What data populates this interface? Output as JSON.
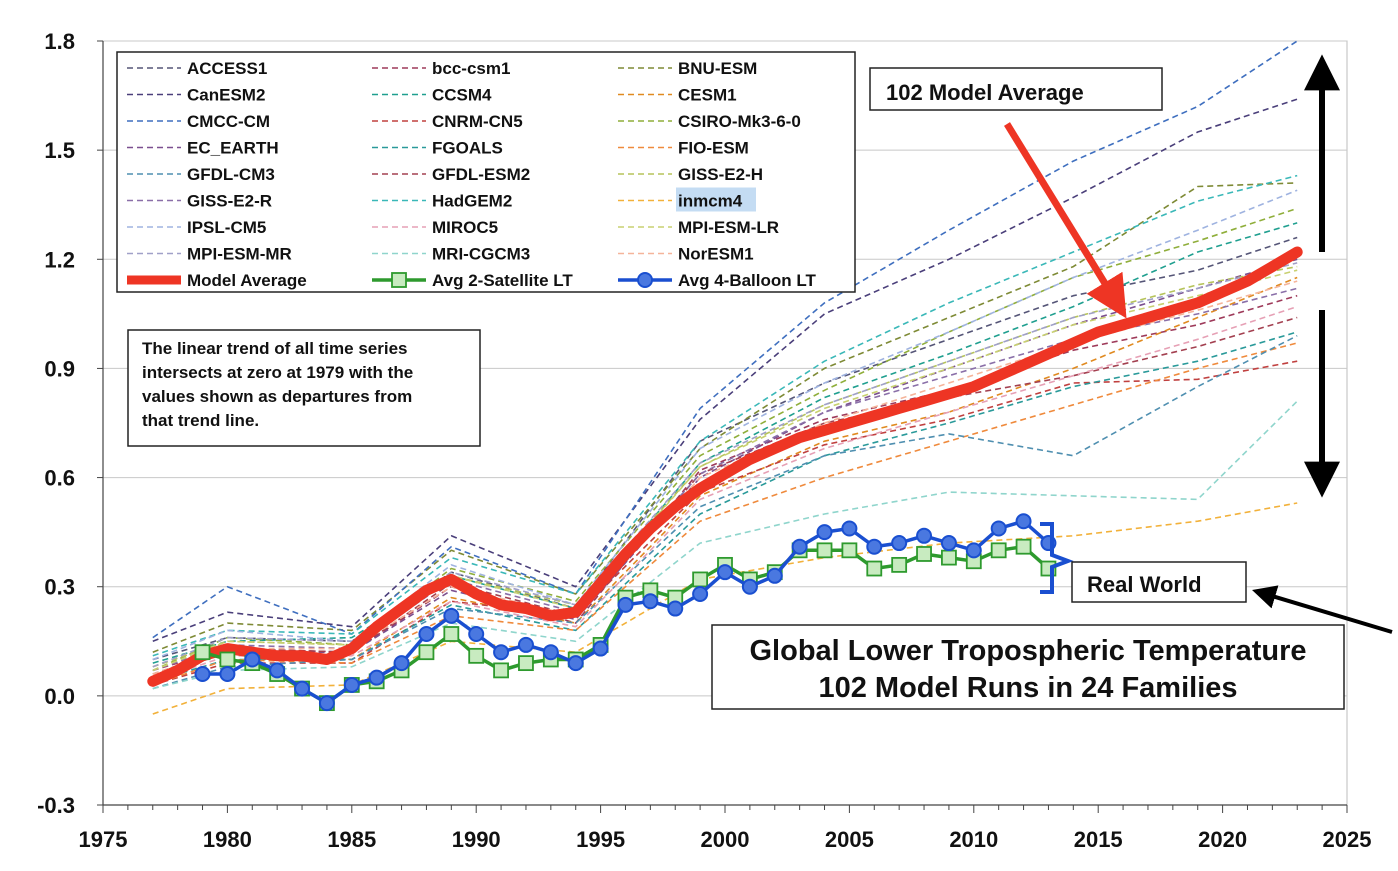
{
  "chart_data": {
    "type": "line",
    "title_lines": [
      "Global Lower Tropospheric Temperature",
      "102 Model Runs in 24 Families"
    ],
    "xlim": [
      1975,
      2025
    ],
    "ylim": [
      -0.3,
      1.8
    ],
    "x_ticks": [
      {
        "value": 1975,
        "label": "1975"
      },
      {
        "value": 1980,
        "label": "1980"
      },
      {
        "value": 1985,
        "label": "1985"
      },
      {
        "value": 1990,
        "label": "1990"
      },
      {
        "value": 1995,
        "label": "1995"
      },
      {
        "value": 2000,
        "label": "2000"
      },
      {
        "value": 2005,
        "label": "2005"
      },
      {
        "value": 2010,
        "label": "2010"
      },
      {
        "value": 2015,
        "label": "2015"
      },
      {
        "value": 2020,
        "label": "2020"
      },
      {
        "value": 2025,
        "label": "2025"
      }
    ],
    "y_ticks": [
      {
        "value": -0.3,
        "label": "-0.3"
      },
      {
        "value": 0.0,
        "label": "0.0"
      },
      {
        "value": 0.3,
        "label": "0.3"
      },
      {
        "value": 0.6,
        "label": "0.6"
      },
      {
        "value": 0.9,
        "label": "0.9"
      },
      {
        "value": 1.2,
        "label": "1.2"
      },
      {
        "value": 1.5,
        "label": "1.5"
      },
      {
        "value": 1.8,
        "label": "1.8"
      }
    ],
    "grid": "horizontal",
    "legend_position": "top-left",
    "note": [
      "The linear trend of all time series",
      "intersects at zero at 1979 with the",
      "values shown as departures from",
      "that trend line."
    ],
    "annotations": {
      "model_average_callout": "102 Model Average",
      "real_world_callout": "Real World",
      "highlighted_model": "inmcm4"
    },
    "x_model": [
      1977,
      1980,
      1985,
      1989,
      1994,
      1999,
      2004,
      2009,
      2014,
      2019,
      2023
    ],
    "model_series": [
      {
        "name": "ACCESS1",
        "color": "#555577",
        "values": [
          0.1,
          0.16,
          0.15,
          0.34,
          0.24,
          0.7,
          0.86,
          0.98,
          1.1,
          1.17,
          1.26
        ]
      },
      {
        "name": "bcc-csm1",
        "color": "#9e3a5a",
        "values": [
          0.07,
          0.13,
          0.12,
          0.3,
          0.2,
          0.62,
          0.76,
          0.84,
          0.95,
          1.02,
          1.1
        ]
      },
      {
        "name": "BNU-ESM",
        "color": "#7e8a35",
        "values": [
          0.12,
          0.2,
          0.18,
          0.4,
          0.28,
          0.68,
          0.9,
          1.04,
          1.18,
          1.4,
          1.41
        ]
      },
      {
        "name": "CanESM2",
        "color": "#4a3f7a",
        "values": [
          0.15,
          0.23,
          0.19,
          0.44,
          0.3,
          0.76,
          1.05,
          1.2,
          1.37,
          1.55,
          1.64
        ]
      },
      {
        "name": "CCSM4",
        "color": "#1f9f8f",
        "values": [
          0.09,
          0.15,
          0.16,
          0.33,
          0.24,
          0.64,
          0.82,
          0.94,
          1.07,
          1.22,
          1.3
        ]
      },
      {
        "name": "CESM1",
        "color": "#e08a20",
        "values": [
          0.05,
          0.12,
          0.1,
          0.27,
          0.2,
          0.55,
          0.7,
          0.78,
          0.9,
          1.04,
          1.15
        ]
      },
      {
        "name": "CMCC-CM",
        "color": "#3f6fbf",
        "values": [
          0.16,
          0.3,
          0.17,
          0.41,
          0.28,
          0.79,
          1.08,
          1.28,
          1.47,
          1.62,
          1.8
        ]
      },
      {
        "name": "CNRM-CN5",
        "color": "#c0403f",
        "values": [
          0.03,
          0.09,
          0.09,
          0.26,
          0.22,
          0.56,
          0.69,
          0.76,
          0.86,
          0.87,
          0.92
        ]
      },
      {
        "name": "CSIRO-Mk3-6-0",
        "color": "#8fae3a",
        "values": [
          0.07,
          0.16,
          0.14,
          0.35,
          0.26,
          0.66,
          0.84,
          1.0,
          1.15,
          1.25,
          1.34
        ]
      },
      {
        "name": "EC_EARTH",
        "color": "#7b4f8f",
        "values": [
          0.05,
          0.12,
          0.12,
          0.29,
          0.21,
          0.6,
          0.78,
          0.9,
          1.02,
          1.12,
          1.2
        ]
      },
      {
        "name": "FGOALS",
        "color": "#2a9a9a",
        "values": [
          0.04,
          0.1,
          0.1,
          0.25,
          0.18,
          0.5,
          0.66,
          0.75,
          0.85,
          0.92,
          1.0
        ]
      },
      {
        "name": "FIO-ESM",
        "color": "#ef8a3c",
        "values": [
          0.03,
          0.1,
          0.09,
          0.22,
          0.18,
          0.48,
          0.6,
          0.7,
          0.8,
          0.9,
          0.97
        ]
      },
      {
        "name": "GFDL-CM3",
        "color": "#4f8fb0",
        "values": [
          0.02,
          0.08,
          0.1,
          0.24,
          0.2,
          0.52,
          0.66,
          0.72,
          0.66,
          0.85,
          0.99
        ]
      },
      {
        "name": "GFDL-ESM2",
        "color": "#a34050",
        "values": [
          0.06,
          0.13,
          0.12,
          0.31,
          0.22,
          0.61,
          0.75,
          0.82,
          0.88,
          0.96,
          1.04
        ]
      },
      {
        "name": "GISS-E2-H",
        "color": "#b6c35a",
        "values": [
          0.08,
          0.15,
          0.14,
          0.33,
          0.25,
          0.63,
          0.8,
          0.92,
          1.04,
          1.13,
          1.18
        ]
      },
      {
        "name": "GISS-E2-R",
        "color": "#8a6fa8",
        "values": [
          0.07,
          0.14,
          0.13,
          0.32,
          0.23,
          0.61,
          0.78,
          0.88,
          0.98,
          1.05,
          1.12
        ]
      },
      {
        "name": "HadGEM2",
        "color": "#3ab8b8",
        "values": [
          0.11,
          0.18,
          0.17,
          0.38,
          0.28,
          0.7,
          0.92,
          1.08,
          1.22,
          1.36,
          1.43
        ]
      },
      {
        "name": "inmcm4",
        "color": "#f2b13a",
        "values": [
          -0.05,
          0.02,
          0.03,
          0.15,
          0.12,
          0.32,
          0.38,
          0.42,
          0.44,
          0.48,
          0.53
        ]
      },
      {
        "name": "IPSL-CM5",
        "color": "#9fb3e0",
        "values": [
          0.1,
          0.18,
          0.15,
          0.36,
          0.25,
          0.68,
          0.86,
          1.0,
          1.15,
          1.28,
          1.39
        ]
      },
      {
        "name": "MIROC5",
        "color": "#e6a0b5",
        "values": [
          0.04,
          0.11,
          0.11,
          0.26,
          0.19,
          0.54,
          0.68,
          0.78,
          0.88,
          0.98,
          1.07
        ]
      },
      {
        "name": "MPI-ESM-LR",
        "color": "#c8d070",
        "values": [
          0.07,
          0.15,
          0.14,
          0.33,
          0.24,
          0.63,
          0.79,
          0.9,
          1.02,
          1.1,
          1.17
        ]
      },
      {
        "name": "MPI-ESM-MR",
        "color": "#a0a0c8",
        "values": [
          0.08,
          0.16,
          0.15,
          0.34,
          0.25,
          0.64,
          0.8,
          0.92,
          1.04,
          1.12,
          1.19
        ]
      },
      {
        "name": "MRI-CGCM3",
        "color": "#8fd5cc",
        "values": [
          0.02,
          0.07,
          0.08,
          0.2,
          0.15,
          0.42,
          0.5,
          0.56,
          0.55,
          0.54,
          0.81
        ]
      },
      {
        "name": "NorESM1",
        "color": "#f5b49a",
        "values": [
          0.06,
          0.13,
          0.13,
          0.3,
          0.22,
          0.6,
          0.75,
          0.86,
          0.97,
          1.06,
          1.14
        ]
      }
    ],
    "model_average": {
      "name": "Model Average",
      "color": "#ee3524",
      "x": [
        1977,
        1978,
        1979,
        1980,
        1981,
        1982,
        1983,
        1984,
        1985,
        1986,
        1987,
        1988,
        1989,
        1990,
        1991,
        1992,
        1993,
        1994,
        1995,
        1996,
        1997,
        1998,
        1999,
        2000,
        2001,
        2002,
        2003,
        2004,
        2005,
        2006,
        2007,
        2008,
        2009,
        2010,
        2011,
        2012,
        2013,
        2014,
        2015,
        2016,
        2017,
        2018,
        2019,
        2020,
        2021,
        2022,
        2023
      ],
      "values": [
        0.04,
        0.07,
        0.11,
        0.13,
        0.12,
        0.11,
        0.11,
        0.1,
        0.13,
        0.19,
        0.24,
        0.29,
        0.32,
        0.28,
        0.25,
        0.24,
        0.22,
        0.23,
        0.31,
        0.39,
        0.46,
        0.52,
        0.57,
        0.61,
        0.65,
        0.68,
        0.71,
        0.73,
        0.75,
        0.77,
        0.79,
        0.81,
        0.83,
        0.85,
        0.88,
        0.91,
        0.94,
        0.97,
        1.0,
        1.02,
        1.04,
        1.06,
        1.08,
        1.11,
        1.14,
        1.18,
        1.22
      ]
    },
    "satellite": {
      "name": "Avg 2-Satellite LT",
      "color": "#2e9a2e",
      "marker_fill": "#c8ebc0",
      "x": [
        1979,
        1980,
        1981,
        1982,
        1983,
        1984,
        1985,
        1986,
        1987,
        1988,
        1989,
        1990,
        1991,
        1992,
        1993,
        1994,
        1995,
        1996,
        1997,
        1998,
        1999,
        2000,
        2001,
        2002,
        2003,
        2004,
        2005,
        2006,
        2007,
        2008,
        2009,
        2010,
        2011,
        2012,
        2013
      ],
      "values": [
        0.12,
        0.1,
        0.09,
        0.06,
        0.02,
        -0.02,
        0.03,
        0.04,
        0.07,
        0.12,
        0.17,
        0.11,
        0.07,
        0.09,
        0.1,
        0.1,
        0.14,
        0.27,
        0.29,
        0.27,
        0.32,
        0.36,
        0.32,
        0.34,
        0.4,
        0.4,
        0.4,
        0.35,
        0.36,
        0.39,
        0.38,
        0.37,
        0.4,
        0.41,
        0.35
      ]
    },
    "balloon": {
      "name": "Avg 4-Balloon LT",
      "color": "#1a4fd0",
      "marker_fill": "#4a78e0",
      "x": [
        1979,
        1980,
        1981,
        1982,
        1983,
        1984,
        1985,
        1986,
        1987,
        1988,
        1989,
        1990,
        1991,
        1992,
        1993,
        1994,
        1995,
        1996,
        1997,
        1998,
        1999,
        2000,
        2001,
        2002,
        2003,
        2004,
        2005,
        2006,
        2007,
        2008,
        2009,
        2010,
        2011,
        2012,
        2013
      ],
      "values": [
        0.06,
        0.06,
        0.1,
        0.07,
        0.02,
        -0.02,
        0.03,
        0.05,
        0.09,
        0.17,
        0.22,
        0.17,
        0.12,
        0.14,
        0.12,
        0.09,
        0.13,
        0.25,
        0.26,
        0.24,
        0.28,
        0.34,
        0.3,
        0.33,
        0.41,
        0.45,
        0.46,
        0.41,
        0.42,
        0.44,
        0.42,
        0.4,
        0.46,
        0.48,
        0.42
      ]
    }
  }
}
